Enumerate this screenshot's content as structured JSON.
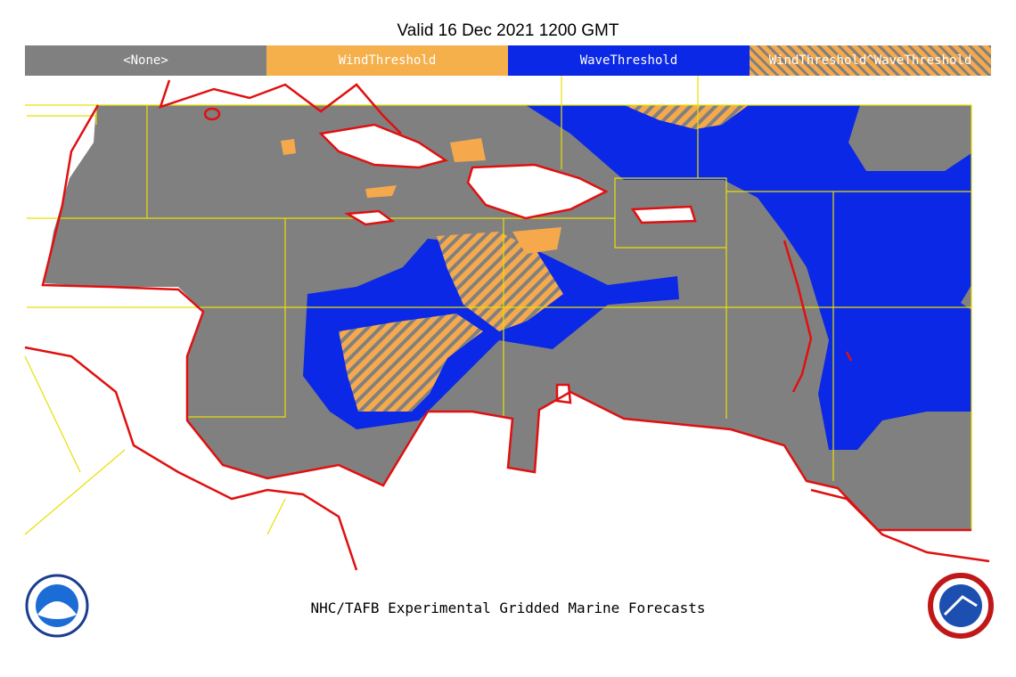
{
  "header": {
    "title": "Valid 16 Dec 2021 1200 GMT"
  },
  "legend": {
    "items": [
      "<None>",
      "WindThreshold",
      "WaveThreshold",
      "WindThreshold^WaveThreshold"
    ]
  },
  "footer": {
    "caption": "NHC/TAFB Experimental Gridded Marine Forecasts"
  }
}
